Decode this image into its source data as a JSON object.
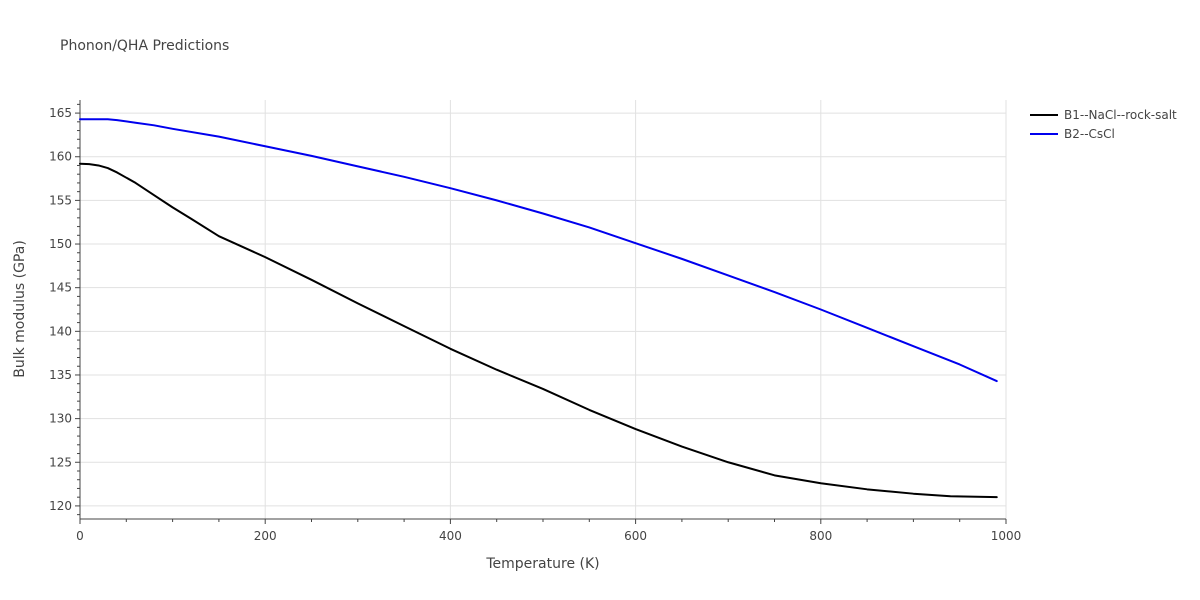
{
  "chart_data": {
    "type": "line",
    "title": "Phonon/QHA Predictions",
    "xlabel": "Temperature (K)",
    "ylabel": "Bulk modulus (GPa)",
    "xlim": [
      0,
      1000
    ],
    "ylim": [
      118.5,
      166.5
    ],
    "x_ticks": [
      0,
      200,
      400,
      600,
      800,
      1000
    ],
    "y_ticks": [
      120,
      125,
      130,
      135,
      140,
      145,
      150,
      155,
      160,
      165
    ],
    "grid": true,
    "legend_position": "top-right",
    "series": [
      {
        "name": "B1--NaCl--rock-salt",
        "color": "#000000",
        "x": [
          0,
          10,
          20,
          30,
          40,
          50,
          60,
          80,
          100,
          120,
          150,
          200,
          250,
          300,
          350,
          400,
          450,
          500,
          550,
          600,
          650,
          700,
          750,
          800,
          850,
          900,
          940,
          990
        ],
        "y": [
          159.2,
          159.15,
          159.0,
          158.7,
          158.2,
          157.6,
          157.0,
          155.6,
          154.2,
          152.9,
          150.9,
          148.5,
          145.9,
          143.2,
          140.6,
          138.0,
          135.6,
          133.4,
          131.0,
          128.8,
          126.8,
          125.0,
          123.5,
          122.6,
          121.9,
          121.4,
          121.1,
          121.0
        ]
      },
      {
        "name": "B2--CsCl",
        "color": "#0000ee",
        "x": [
          0,
          10,
          20,
          30,
          40,
          60,
          80,
          100,
          150,
          200,
          250,
          300,
          350,
          400,
          450,
          500,
          550,
          600,
          650,
          700,
          750,
          800,
          850,
          900,
          950,
          990
        ],
        "y": [
          164.3,
          164.3,
          164.3,
          164.3,
          164.2,
          163.9,
          163.6,
          163.2,
          162.3,
          161.2,
          160.1,
          158.9,
          157.7,
          156.4,
          155.0,
          153.5,
          151.9,
          150.1,
          148.3,
          146.4,
          144.5,
          142.5,
          140.4,
          138.3,
          136.2,
          134.3
        ]
      }
    ]
  }
}
